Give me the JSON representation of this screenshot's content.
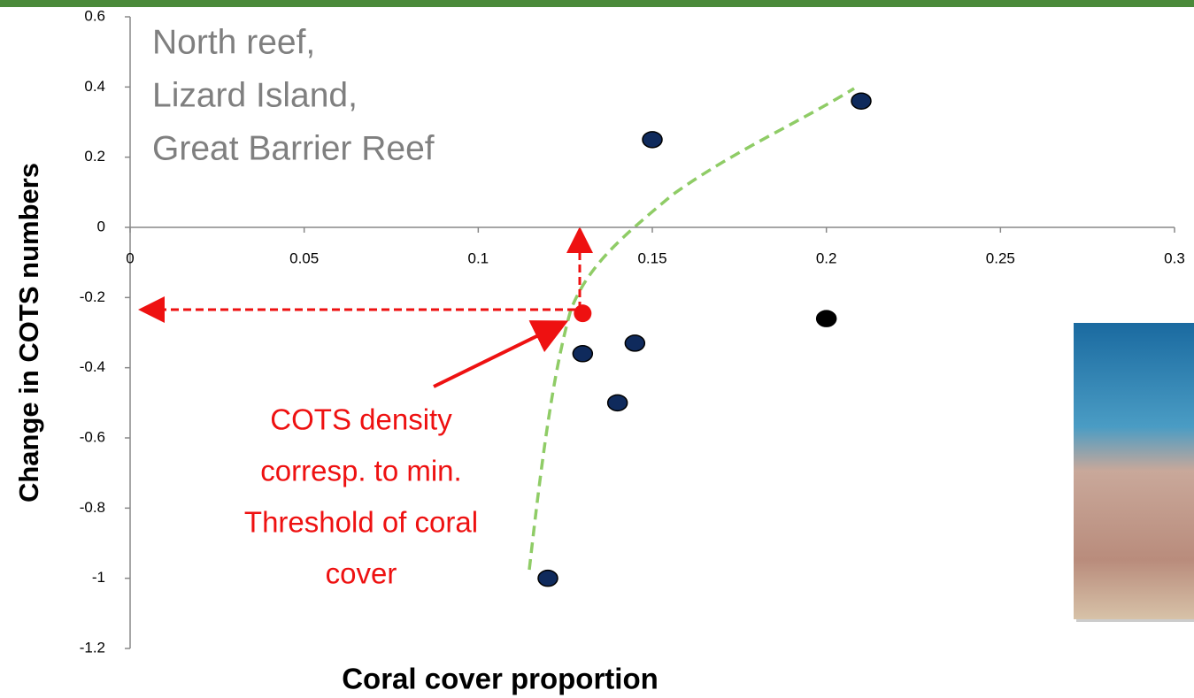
{
  "chart_data": {
    "type": "scatter",
    "title_lines": [
      "North reef,",
      "Lizard Island,",
      "Great Barrier Reef"
    ],
    "x_label": "Coral cover proportion",
    "y_label": "Change in COTS numbers",
    "annotation_lines": [
      "COTS density",
      "corresp. to min.",
      "Threshold of coral",
      "cover"
    ],
    "xlim": [
      0,
      0.3
    ],
    "xticks": [
      0,
      0.05,
      0.1,
      0.15,
      0.2,
      0.25,
      0.3
    ],
    "ylim": [
      -1.2,
      0.6
    ],
    "yticks": [
      0.6,
      0.4,
      0.2,
      0,
      -0.2,
      -0.4,
      -0.6,
      -0.8,
      -1,
      -1.2
    ],
    "series": [
      {
        "color": "#0f2a5c",
        "x": [
          0.15,
          0.21,
          0.13,
          0.145,
          0.14,
          0.12
        ],
        "values": [
          0.25,
          0.36,
          -0.36,
          -0.33,
          -0.5,
          -1.0
        ]
      },
      {
        "color": "#000000",
        "x": [
          0.2
        ],
        "values": [
          -0.26
        ]
      }
    ],
    "highlight": {
      "color": "#ee1111",
      "x": 0.13,
      "values": [
        -0.245
      ]
    }
  }
}
